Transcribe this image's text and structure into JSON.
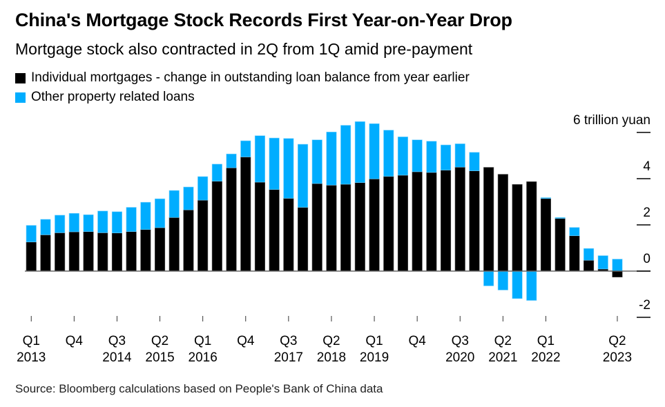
{
  "header": {
    "title": "China's Mortgage Stock Records First Year-on-Year Drop",
    "subtitle": "Mortgage stock also contracted in 2Q from 1Q amid pre-payment"
  },
  "legend": [
    {
      "label": "Individual mortgages - change in outstanding loan balance from year earlier",
      "color": "#000000"
    },
    {
      "label": "Other property related loans",
      "color": "#00adff"
    }
  ],
  "source": "Source: Bloomberg calculations based on People's Bank of China data",
  "chart_data": {
    "type": "bar",
    "stacked": true,
    "title": "China's Mortgage Stock Records First Year-on-Year Drop",
    "subtitle": "Mortgage stock also contracted in 2Q from 1Q amid pre-payment",
    "ylabel": "trillion yuan",
    "y_unit_label": "6 trillion yuan",
    "ylim": [
      -2,
      6
    ],
    "y_ticks": [
      6,
      4,
      2,
      0,
      -2
    ],
    "y_tick_labels": [
      "6 trillion yuan",
      "4",
      "2",
      "0",
      "-2"
    ],
    "y_axis_position": "right",
    "grid": false,
    "categories": [
      "Q1 2013",
      "Q2 2013",
      "Q3 2013",
      "Q4 2013",
      "Q1 2014",
      "Q2 2014",
      "Q3 2014",
      "Q4 2014",
      "Q1 2015",
      "Q2 2015",
      "Q3 2015",
      "Q4 2015",
      "Q1 2016",
      "Q2 2016",
      "Q3 2016",
      "Q4 2016",
      "Q1 2017",
      "Q2 2017",
      "Q3 2017",
      "Q4 2017",
      "Q1 2018",
      "Q2 2018",
      "Q3 2018",
      "Q4 2018",
      "Q1 2019",
      "Q2 2019",
      "Q3 2019",
      "Q4 2019",
      "Q1 2020",
      "Q2 2020",
      "Q3 2020",
      "Q4 2020",
      "Q1 2021",
      "Q2 2021",
      "Q3 2021",
      "Q4 2021",
      "Q1 2022",
      "Q2 2022",
      "Q3 2022",
      "Q4 2022",
      "Q1 2023",
      "Q2 2023"
    ],
    "x_ticks": [
      {
        "index": 0,
        "quarter": "Q1",
        "year": "2013"
      },
      {
        "index": 3,
        "quarter": "Q4",
        "year": ""
      },
      {
        "index": 6,
        "quarter": "Q3",
        "year": "2014"
      },
      {
        "index": 9,
        "quarter": "Q2",
        "year": "2015"
      },
      {
        "index": 12,
        "quarter": "Q1",
        "year": "2016"
      },
      {
        "index": 15,
        "quarter": "Q4",
        "year": ""
      },
      {
        "index": 18,
        "quarter": "Q3",
        "year": "2017"
      },
      {
        "index": 21,
        "quarter": "Q2",
        "year": "2018"
      },
      {
        "index": 24,
        "quarter": "Q1",
        "year": "2019"
      },
      {
        "index": 27,
        "quarter": "Q4",
        "year": ""
      },
      {
        "index": 30,
        "quarter": "Q3",
        "year": "2020"
      },
      {
        "index": 33,
        "quarter": "Q2",
        "year": "2021"
      },
      {
        "index": 36,
        "quarter": "Q1",
        "year": "2022"
      },
      {
        "index": 41,
        "quarter": "Q2",
        "year": "2023"
      }
    ],
    "series": [
      {
        "name": "Individual mortgages - change in outstanding loan balance from year earlier",
        "color": "#000000",
        "values": [
          1.26,
          1.57,
          1.66,
          1.7,
          1.71,
          1.66,
          1.65,
          1.71,
          1.8,
          1.88,
          2.32,
          2.65,
          3.07,
          3.89,
          4.47,
          4.94,
          3.85,
          3.53,
          3.15,
          2.76,
          3.79,
          3.72,
          3.76,
          3.83,
          3.99,
          4.1,
          4.15,
          4.3,
          4.27,
          4.37,
          4.5,
          4.34,
          4.49,
          4.19,
          3.75,
          3.87,
          3.14,
          2.28,
          1.53,
          0.47,
          0.09,
          -0.26
        ]
      },
      {
        "name": "Other property related loans",
        "color": "#00adff",
        "values": [
          0.72,
          0.67,
          0.76,
          0.8,
          0.73,
          0.94,
          0.92,
          1.05,
          1.18,
          1.25,
          1.17,
          0.99,
          1.02,
          0.74,
          0.6,
          0.7,
          2.01,
          2.23,
          2.59,
          2.73,
          1.89,
          2.3,
          2.55,
          2.64,
          2.39,
          2.0,
          1.66,
          1.38,
          1.35,
          1.09,
          1.01,
          0.8,
          -0.64,
          -0.82,
          -1.19,
          -1.27,
          0.04,
          0.04,
          0.36,
          0.51,
          0.58,
          0.52
        ]
      }
    ]
  }
}
